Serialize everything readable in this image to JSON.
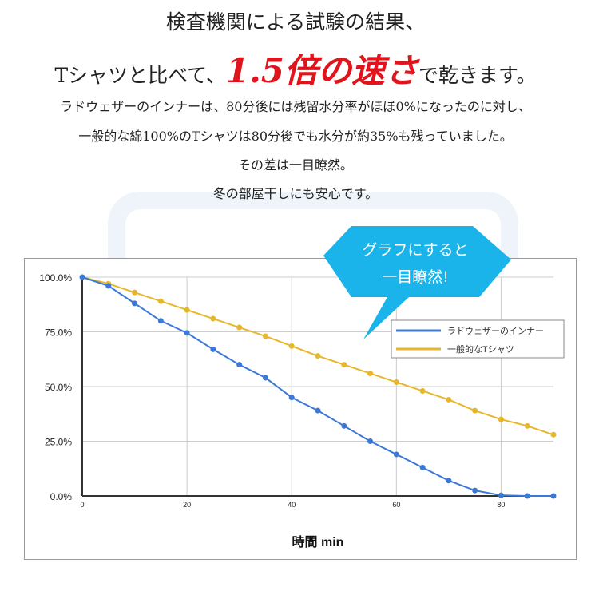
{
  "heading": {
    "line1": "検査機関による試験の結果、",
    "line2_pre": "Tシャツと比べて、",
    "line2_accent": "1.5倍の速さ",
    "line2_post": "で乾きます。"
  },
  "paragraphs": [
    "ラドウェザーのインナーは、80分後には残留水分率がほぼ0%になったのに対し、",
    "一般的な綿100%のTシャツは80分後でも水分が約35%も残っていました。",
    "その差は一目瞭然。",
    "冬の部屋干しにも安心です。"
  ],
  "callout": {
    "line1": "グラフにすると",
    "line2": "一目瞭然!",
    "color": "#1ab4ea"
  },
  "chart_data": {
    "type": "line",
    "xlabel": "時間 min",
    "ylabel": "",
    "xlim": [
      0,
      90
    ],
    "ylim": [
      0,
      100
    ],
    "x_ticks": [
      "0",
      "20",
      "40",
      "60",
      "80"
    ],
    "y_ticks": [
      "0.0%",
      "25.0%",
      "50.0%",
      "75.0%",
      "100.0%"
    ],
    "grid": true,
    "legend_position": "right",
    "x": [
      0,
      5,
      10,
      15,
      20,
      25,
      30,
      35,
      40,
      45,
      50,
      55,
      60,
      65,
      70,
      75,
      80,
      85,
      90
    ],
    "series": [
      {
        "name": "ラドウェザーのインナー",
        "color": "#3c78d8",
        "values": [
          100,
          96,
          88,
          80,
          74.5,
          67,
          60,
          54,
          45,
          39,
          32,
          25,
          19,
          13,
          7,
          2.5,
          0.3,
          0,
          0
        ]
      },
      {
        "name": "一般的なTシャツ",
        "color": "#e8b62b",
        "values": [
          100,
          97,
          93,
          89,
          85,
          81,
          77,
          73,
          68.5,
          64,
          60,
          56,
          52,
          48,
          44,
          39,
          35,
          32,
          28
        ]
      }
    ]
  }
}
